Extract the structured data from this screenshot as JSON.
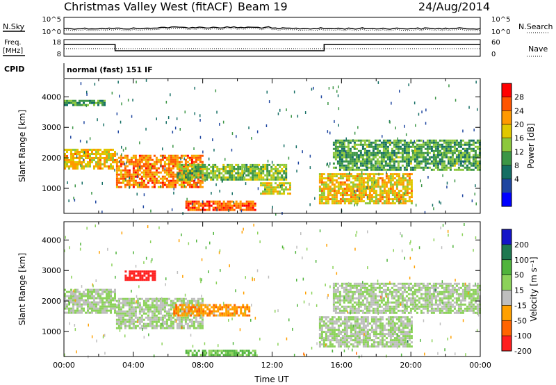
{
  "header": {
    "station": "Christmas Valley West (fitACF)",
    "beam": "Beam 19",
    "date": "24/Aug/2014"
  },
  "top_panels": {
    "nsky_label": "N.Sky",
    "nsearch_label": "N.Search",
    "noise_ticks": [
      "10^5",
      "10^0"
    ],
    "freq_label_1": "Freq.",
    "freq_label_2": "[MHz]",
    "freq_ticks": [
      "18",
      "8"
    ],
    "nave_label": "Nave",
    "nave_ticks": [
      "60",
      "0"
    ],
    "cpid_label": "CPID",
    "cpid_value": "normal (fast) 151 IF"
  },
  "colorbars": {
    "power": {
      "label": "Power [dB]",
      "ticks": [
        "28",
        "24",
        "20",
        "16",
        "12",
        "8",
        "4"
      ],
      "colors": [
        "#ff0000",
        "#ff5500",
        "#ff9900",
        "#e0c800",
        "#8cc83c",
        "#3c9646",
        "#146e64",
        "#1e46a0",
        "#0000ff"
      ]
    },
    "velocity": {
      "label": "Velocity [m s⁻¹]",
      "ticks": [
        "200",
        "100",
        "50",
        "15",
        "-15",
        "-50",
        "-100",
        "-200"
      ],
      "colors": [
        "#1414c8",
        "#1e7850",
        "#50b43c",
        "#8cd25a",
        "#bebebe",
        "#ffa000",
        "#ff6400",
        "#ff1e1e"
      ]
    }
  },
  "chart_data": [
    {
      "type": "heatmap",
      "name": "power",
      "xlabel": "",
      "ylabel": "Slant Range [km]",
      "xlim": [
        0,
        24
      ],
      "ylim": [
        180,
        4600
      ],
      "yticks": [
        1000,
        2000,
        3000,
        4000
      ],
      "colorbar_label": "Power [dB]",
      "regions": [
        {
          "t": [
            0,
            2.95
          ],
          "r": [
            1650,
            2300
          ],
          "level": 20
        },
        {
          "t": [
            0,
            2.3
          ],
          "r": [
            3700,
            3900
          ],
          "level": 10
        },
        {
          "t": [
            3.0,
            8.0
          ],
          "r": [
            1050,
            2100
          ],
          "level": 24
        },
        {
          "t": [
            6.5,
            12.8
          ],
          "r": [
            1300,
            1800
          ],
          "level": 14
        },
        {
          "t": [
            7.0,
            11.0
          ],
          "r": [
            300,
            600
          ],
          "level": 26
        },
        {
          "t": [
            11.3,
            13.0
          ],
          "r": [
            800,
            1200
          ],
          "level": 18
        },
        {
          "t": [
            14.7,
            20.0
          ],
          "r": [
            500,
            1500
          ],
          "level": 20
        },
        {
          "t": [
            15.5,
            24
          ],
          "r": [
            1600,
            2600
          ],
          "level": 12
        }
      ]
    },
    {
      "type": "heatmap",
      "name": "velocity",
      "xlabel": "Time UT",
      "ylabel": "Slant Range [km]",
      "xlim": [
        0,
        24
      ],
      "ylim": [
        180,
        4600
      ],
      "xticks": [
        "00:00",
        "04:00",
        "08:00",
        "12:00",
        "16:00",
        "20:00",
        "00:00"
      ],
      "yticks": [
        1000,
        2000,
        3000,
        4000
      ],
      "colorbar_label": "Velocity [m s⁻¹]",
      "regions": [
        {
          "t": [
            0,
            2.95
          ],
          "r": [
            1600,
            2400
          ],
          "v": 0
        },
        {
          "t": [
            3.0,
            8.0
          ],
          "r": [
            1100,
            2100
          ],
          "v": 0
        },
        {
          "t": [
            3.5,
            5.3
          ],
          "r": [
            2700,
            3000
          ],
          "v": -200
        },
        {
          "t": [
            6.3,
            10.7
          ],
          "r": [
            1500,
            1900
          ],
          "v": -60
        },
        {
          "t": [
            7.0,
            11.0
          ],
          "r": [
            200,
            400
          ],
          "v": 40
        },
        {
          "t": [
            14.7,
            20.0
          ],
          "r": [
            500,
            1500
          ],
          "v": 0
        },
        {
          "t": [
            15.5,
            24
          ],
          "r": [
            1600,
            2600
          ],
          "v": 0
        }
      ]
    }
  ]
}
